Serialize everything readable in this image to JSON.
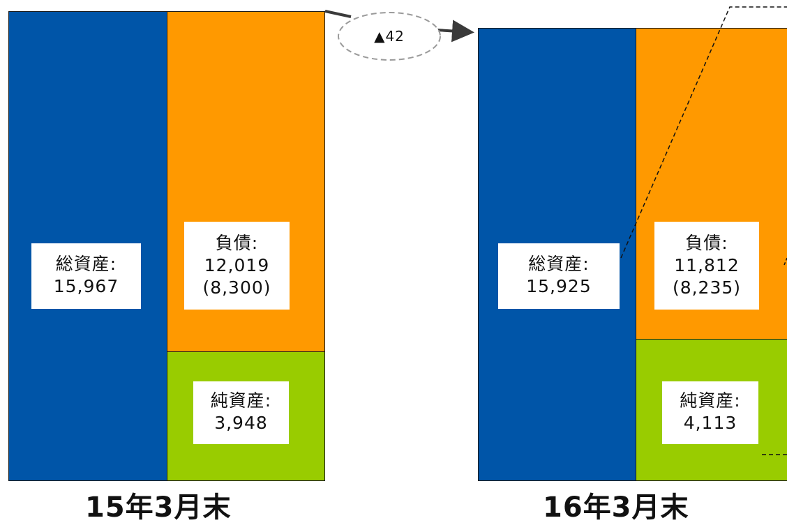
{
  "colors": {
    "assets": "#0055a8",
    "liabilities": "#ff9900",
    "net_assets": "#99cc00"
  },
  "period1": {
    "label": "15年3月末",
    "total_assets": {
      "title": "総資産:",
      "value": "15,967"
    },
    "liabilities": {
      "title": "負債:",
      "value": "12,019",
      "sub": "(8,300)"
    },
    "net_assets": {
      "title": "純資産:",
      "value": "3,948"
    }
  },
  "period2": {
    "label": "16年3月末",
    "total_assets": {
      "title": "総資産:",
      "value": "15,925"
    },
    "liabilities": {
      "title": "負債:",
      "value": "11,812",
      "sub": "(8,235)"
    },
    "net_assets": {
      "title": "純資産:",
      "value": "4,113"
    }
  },
  "change": {
    "label": "▲42"
  }
}
